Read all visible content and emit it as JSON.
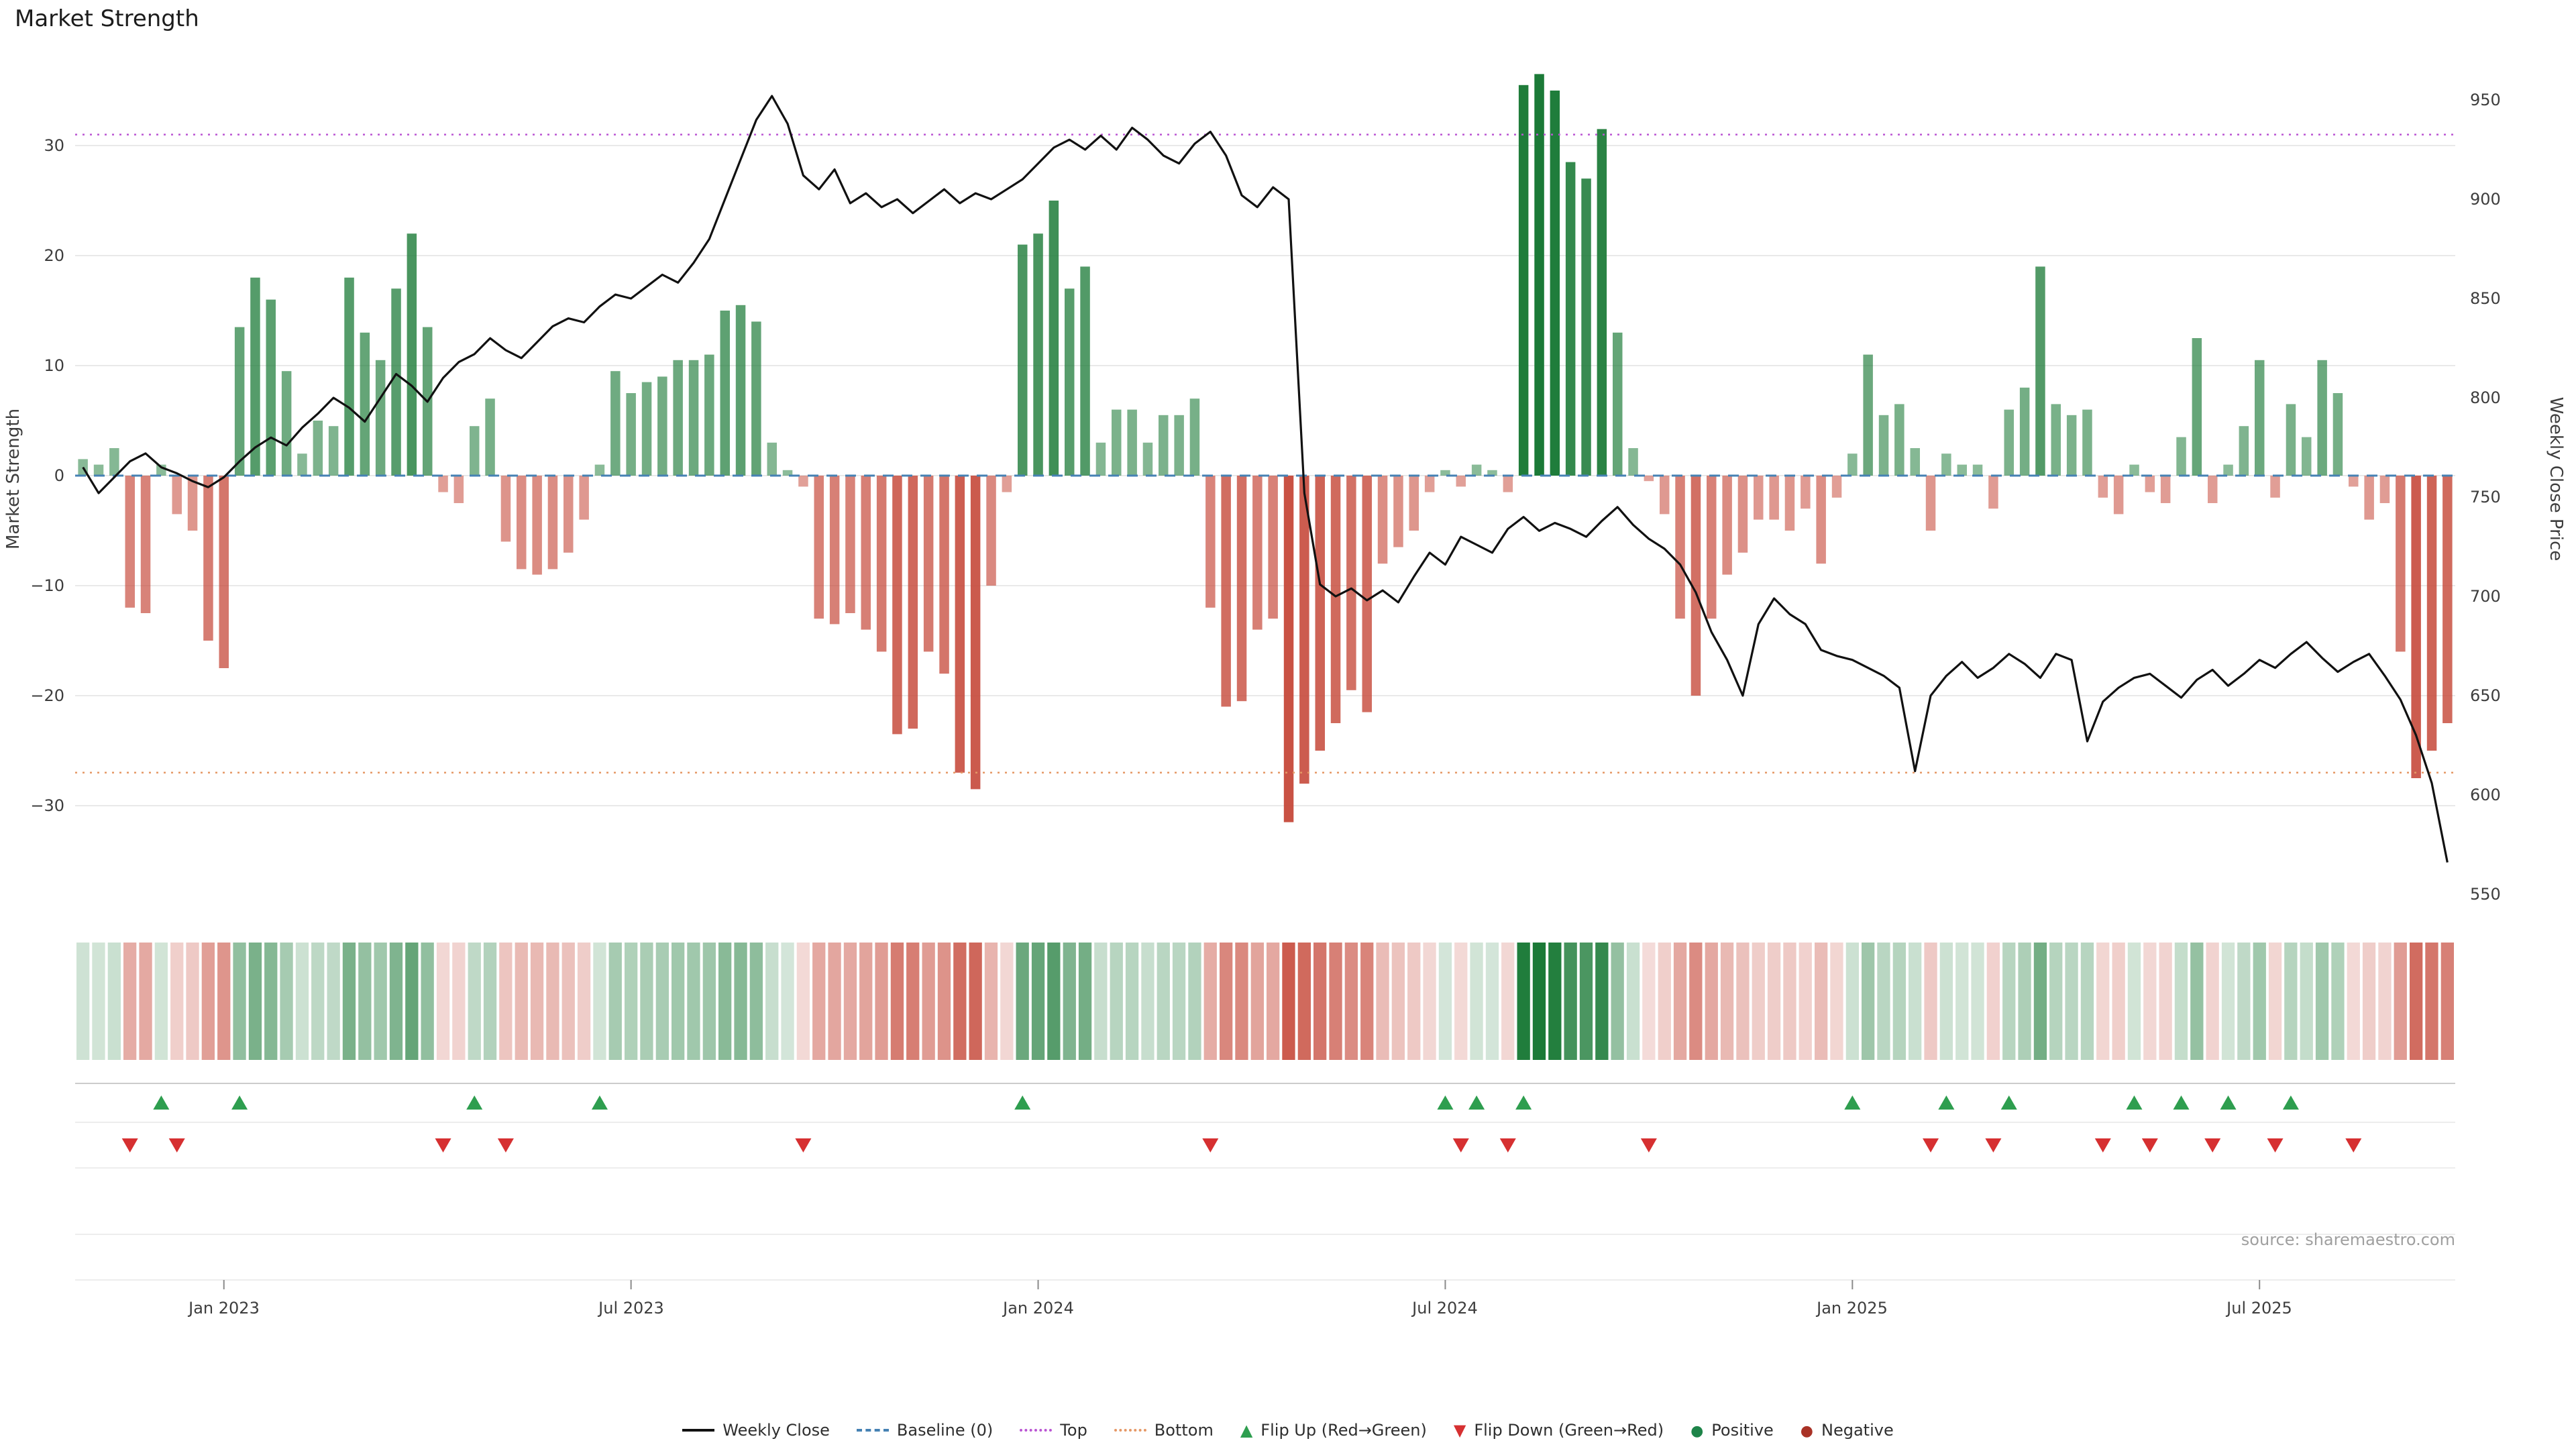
{
  "title": "Market Strength",
  "source": "source: sharemaestro.com",
  "axes": {
    "left_label": "Market Strength",
    "right_label": "Weekly Close Price",
    "left_ticks": [
      "30",
      "20",
      "10",
      "0",
      "−10",
      "−20",
      "−30"
    ],
    "right_ticks": [
      "950",
      "900",
      "850",
      "800",
      "750",
      "700",
      "650",
      "600",
      "550"
    ],
    "x_ticks": [
      {
        "index": 9,
        "label": "Jan 2023"
      },
      {
        "index": 35,
        "label": "Jul 2023"
      },
      {
        "index": 61,
        "label": "Jan 2024"
      },
      {
        "index": 87,
        "label": "Jul 2024"
      },
      {
        "index": 113,
        "label": "Jan 2025"
      },
      {
        "index": 139,
        "label": "Jul 2025"
      }
    ]
  },
  "colors": {
    "weekly_close": "#111111",
    "baseline": "#4682b4",
    "top": "#ba55d3",
    "bottom": "#e59866",
    "flip_up": "#2e9e4f",
    "flip_down": "#d63031",
    "positive": "#1b7a37",
    "negative": "#c54637",
    "positive_rgb": [
      27,
      122,
      55
    ],
    "negative_rgb": [
      197,
      70,
      55
    ]
  },
  "legend": {
    "items": [
      {
        "label": "Weekly Close"
      },
      {
        "label": "Baseline (0)"
      },
      {
        "label": "Top"
      },
      {
        "label": "Bottom"
      },
      {
        "label": "Flip Up (Red→Green)"
      },
      {
        "label": "Flip Down (Green→Red)"
      },
      {
        "label": "Positive"
      },
      {
        "label": "Negative"
      }
    ]
  },
  "chart_data": {
    "type": "bar",
    "subtype": "weekly bar + line combo with heatmap strip and flip markers",
    "title": "Market Strength",
    "x_unit": "week",
    "left_axis": {
      "label": "Market Strength",
      "range": [
        -38,
        38
      ],
      "ticks": [
        30,
        20,
        10,
        0,
        -10,
        -20,
        -30
      ]
    },
    "right_axis": {
      "label": "Weekly Close Price",
      "range": [
        545,
        975
      ],
      "ticks": [
        950,
        900,
        850,
        800,
        750,
        700,
        650,
        600,
        550
      ]
    },
    "reference_lines": {
      "baseline": 0,
      "top": 31,
      "bottom": -27
    },
    "grid": true,
    "legend_position": "bottom-center",
    "series": [
      {
        "name": "Market Strength",
        "type": "bar",
        "axis": "left",
        "values": [
          1.5,
          1,
          2.5,
          -12,
          -12.5,
          1,
          -3.5,
          -5,
          -15,
          -17.5,
          13.5,
          18,
          16,
          9.5,
          2,
          5,
          4.5,
          18,
          13,
          10.5,
          17,
          22,
          13.5,
          -1.5,
          -2.5,
          4.5,
          7,
          -6,
          -8.5,
          -9,
          -8.5,
          -7,
          -4,
          1,
          9.5,
          7.5,
          8.5,
          9,
          10.5,
          10.5,
          11,
          15,
          15.5,
          14,
          3,
          0.5,
          -1,
          -13,
          -13.5,
          -12.5,
          -14,
          -16,
          -23.5,
          -23,
          -16,
          -18,
          -27,
          -28.5,
          -10,
          -1.5,
          21,
          22,
          25,
          17,
          19,
          3,
          6,
          6,
          3,
          5.5,
          5.5,
          7,
          -12,
          -21,
          -20.5,
          -14,
          -13,
          -31.5,
          -28,
          -25,
          -22.5,
          -19.5,
          -21.5,
          -8,
          -6.5,
          -5,
          -1.5,
          0.5,
          -1,
          1,
          0.5,
          -1.5,
          35.5,
          36.5,
          35,
          28.5,
          27,
          31.5,
          13,
          2.5,
          -0.5,
          -3.5,
          -13,
          -20,
          -13,
          -9,
          -7,
          -4,
          -4,
          -5,
          -3,
          -8,
          -2,
          2,
          11,
          5.5,
          6.5,
          2.5,
          -5,
          2,
          1,
          1,
          -3,
          6,
          8,
          19,
          6.5,
          5.5,
          6,
          -2,
          -3.5,
          1,
          -1.5,
          -2.5,
          3.5,
          12.5,
          -2.5,
          1,
          4.5,
          10.5,
          -2,
          6.5,
          3.5,
          10.5,
          7.5,
          -1,
          -4,
          -2.5,
          -16,
          -27.5,
          -25,
          -22.5
        ]
      },
      {
        "name": "Weekly Close",
        "type": "line",
        "axis": "right",
        "values": [
          765,
          752,
          760,
          768,
          772,
          765,
          762,
          758,
          755,
          760,
          768,
          775,
          780,
          776,
          785,
          792,
          800,
          795,
          788,
          800,
          812,
          806,
          798,
          810,
          818,
          822,
          830,
          824,
          820,
          828,
          836,
          840,
          838,
          846,
          852,
          850,
          856,
          862,
          858,
          868,
          880,
          900,
          920,
          940,
          952,
          938,
          912,
          905,
          915,
          898,
          903,
          896,
          900,
          893,
          899,
          905,
          898,
          903,
          900,
          905,
          910,
          918,
          926,
          930,
          925,
          932,
          925,
          936,
          930,
          922,
          918,
          928,
          934,
          922,
          902,
          896,
          906,
          900,
          752,
          706,
          700,
          704,
          698,
          703,
          697,
          710,
          722,
          716,
          730,
          726,
          722,
          734,
          740,
          733,
          737,
          734,
          730,
          738,
          745,
          736,
          729,
          724,
          716,
          702,
          682,
          668,
          650,
          686,
          699,
          691,
          686,
          673,
          670,
          668,
          664,
          660,
          654,
          612,
          650,
          660,
          667,
          659,
          664,
          671,
          666,
          659,
          671,
          668,
          627,
          647,
          654,
          659,
          661,
          655,
          649,
          658,
          663,
          655,
          661,
          668,
          664,
          671,
          677,
          669,
          662,
          667,
          671,
          660,
          648,
          630,
          606,
          566
        ]
      }
    ],
    "flip_up_indices": [
      5,
      10,
      25,
      33,
      60,
      87,
      89,
      92,
      113,
      119,
      123,
      131,
      134,
      137,
      141
    ],
    "flip_down_indices": [
      3,
      6,
      23,
      27,
      46,
      72,
      88,
      91,
      100,
      118,
      122,
      129,
      132,
      136,
      140,
      145
    ]
  }
}
